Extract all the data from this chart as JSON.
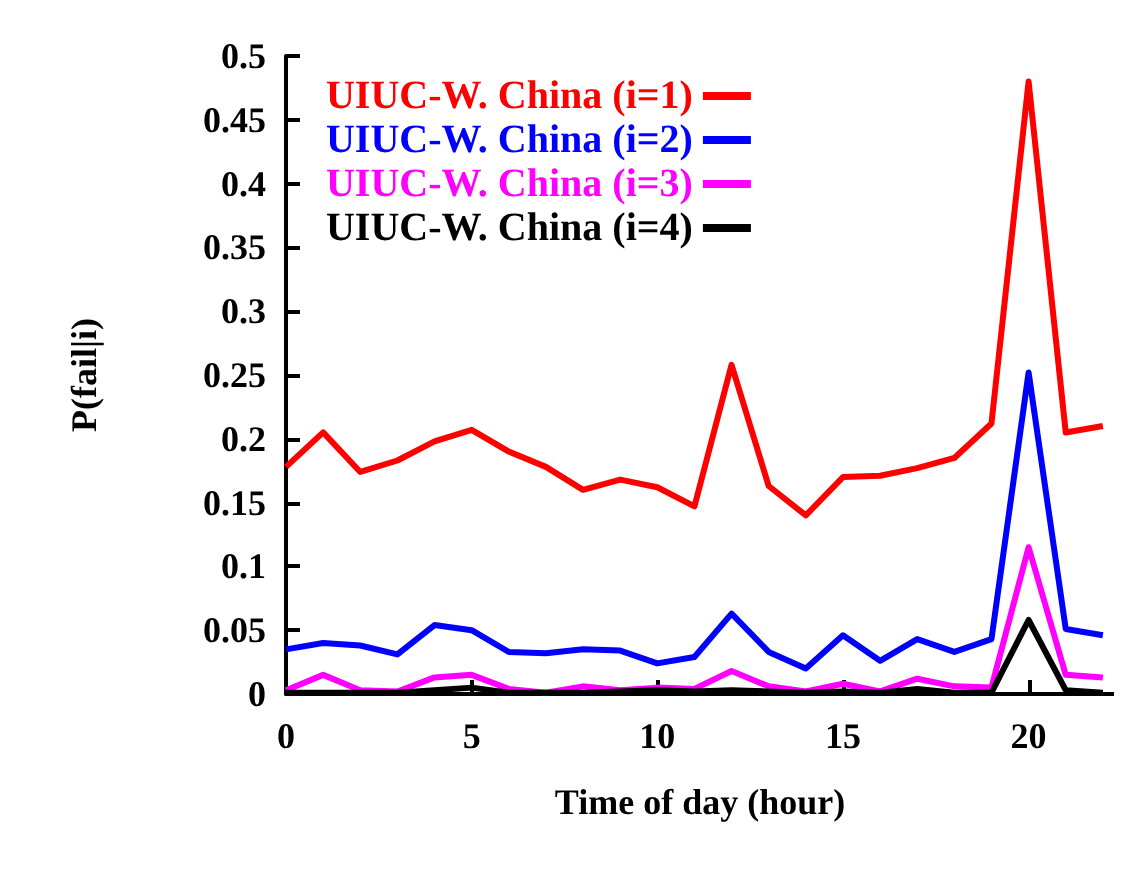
{
  "chart_data": {
    "type": "line",
    "xlabel": "Time of day (hour)",
    "ylabel": "P(fail|i)",
    "x": [
      0,
      1,
      2,
      3,
      4,
      5,
      6,
      7,
      8,
      9,
      10,
      11,
      12,
      13,
      14,
      15,
      16,
      17,
      18,
      19,
      20,
      21,
      22
    ],
    "xlim": [
      0,
      22.3
    ],
    "xticks": [
      0,
      5,
      10,
      15,
      20
    ],
    "ylim": [
      0,
      0.5
    ],
    "yticks": [
      0,
      0.05,
      0.1,
      0.15,
      0.2,
      0.25,
      0.3,
      0.35,
      0.4,
      0.45,
      0.5
    ],
    "grid": false,
    "legend": "top left",
    "marker": "none",
    "line_style": "solid",
    "series": [
      {
        "name": "UIUC-W. China (i=1)",
        "color": "#ff0000",
        "values": [
          0.178,
          0.205,
          0.174,
          0.183,
          0.198,
          0.207,
          0.19,
          0.178,
          0.16,
          0.168,
          0.162,
          0.147,
          0.258,
          0.163,
          0.14,
          0.17,
          0.171,
          0.177,
          0.185,
          0.212,
          0.48,
          0.205,
          0.21
        ]
      },
      {
        "name": "UIUC-W. China (i=2)",
        "color": "#0000ff",
        "values": [
          0.035,
          0.04,
          0.038,
          0.031,
          0.054,
          0.05,
          0.033,
          0.032,
          0.035,
          0.034,
          0.024,
          0.029,
          0.063,
          0.033,
          0.02,
          0.046,
          0.026,
          0.043,
          0.033,
          0.043,
          0.252,
          0.051,
          0.046
        ]
      },
      {
        "name": "UIUC-W. China (i=3)",
        "color": "#ff00ff",
        "values": [
          0.003,
          0.015,
          0.003,
          0.002,
          0.013,
          0.015,
          0.004,
          0.001,
          0.006,
          0.003,
          0.005,
          0.004,
          0.018,
          0.006,
          0.002,
          0.008,
          0.002,
          0.012,
          0.006,
          0.005,
          0.115,
          0.015,
          0.013
        ]
      },
      {
        "name": "UIUC-W. China (i=4)",
        "color": "#000000",
        "values": [
          0.001,
          0.001,
          0.001,
          0.001,
          0.003,
          0.005,
          0.001,
          0.001,
          0.001,
          0.002,
          0.003,
          0.002,
          0.003,
          0.002,
          0.001,
          0.002,
          0.001,
          0.004,
          0.001,
          0.001,
          0.058,
          0.003,
          0.001
        ]
      }
    ]
  }
}
